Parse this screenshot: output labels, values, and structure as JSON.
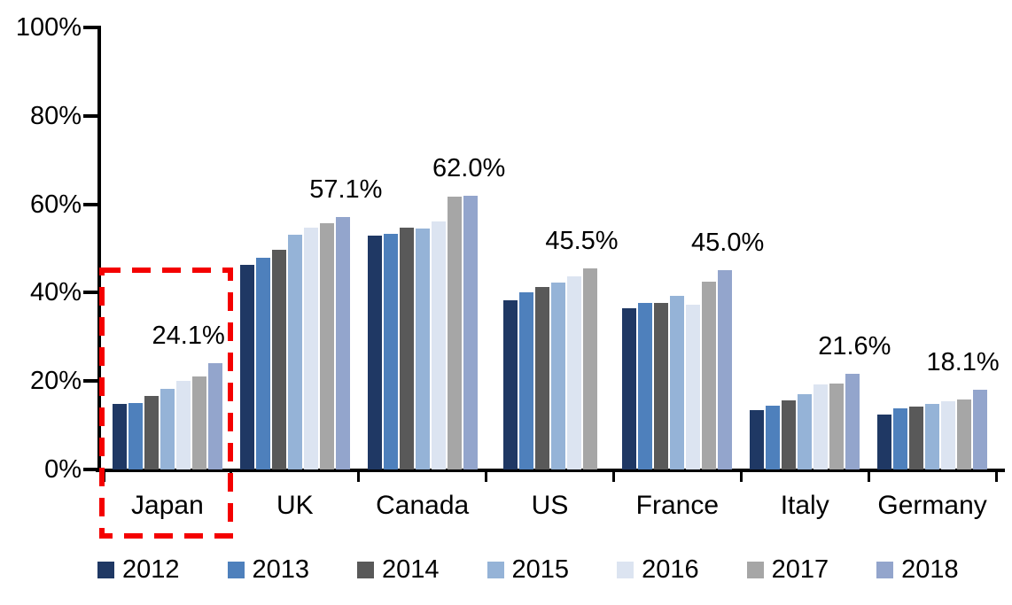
{
  "chart_data": {
    "type": "bar",
    "title": "",
    "xlabel": "",
    "ylabel": "",
    "categories": [
      "Japan",
      "UK",
      "Canada",
      "US",
      "France",
      "Italy",
      "Germany"
    ],
    "series": [
      {
        "name": "2012",
        "color": "#1F3864",
        "values": [
          14.8,
          46.3,
          53.0,
          38.2,
          36.4,
          13.5,
          12.5
        ]
      },
      {
        "name": "2013",
        "color": "#4E80BC",
        "values": [
          15.0,
          47.8,
          53.4,
          40.0,
          37.6,
          14.4,
          13.9
        ]
      },
      {
        "name": "2014",
        "color": "#595959",
        "values": [
          16.7,
          49.8,
          54.8,
          41.3,
          37.6,
          15.6,
          14.3
        ]
      },
      {
        "name": "2015",
        "color": "#95B3D7",
        "values": [
          18.2,
          53.1,
          54.6,
          42.2,
          39.3,
          17.0,
          14.8
        ]
      },
      {
        "name": "2016",
        "color": "#DCE4F1",
        "values": [
          20.1,
          54.8,
          56.1,
          43.6,
          37.3,
          19.2,
          15.4
        ]
      },
      {
        "name": "2017",
        "color": "#A6A6A6",
        "values": [
          21.1,
          55.8,
          61.7,
          45.5,
          42.4,
          19.4,
          15.9
        ]
      },
      {
        "name": "2018",
        "color": "#93A5CC",
        "values": [
          24.1,
          57.1,
          62.0,
          null,
          45.0,
          21.6,
          18.1
        ]
      }
    ],
    "annotations": [
      {
        "category": "Japan",
        "text": "24.1%"
      },
      {
        "category": "UK",
        "text": "57.1%"
      },
      {
        "category": "Canada",
        "text": "62.0%"
      },
      {
        "category": "US",
        "text": "45.5%"
      },
      {
        "category": "France",
        "text": "45.0%"
      },
      {
        "category": "Italy",
        "text": "21.6%"
      },
      {
        "category": "Germany",
        "text": "18.1%"
      }
    ],
    "y_axis": {
      "tick_labels": [
        "100%",
        "80%",
        "60%",
        "40%",
        "20%",
        "0%"
      ],
      "min": 0,
      "max": 100,
      "grid": false
    },
    "legend": {
      "position": "bottom",
      "entries": [
        "2012",
        "2013",
        "2014",
        "2015",
        "2016",
        "2017",
        "2018"
      ]
    },
    "highlight": {
      "category": "Japan",
      "shape": "dashed-rectangle",
      "color": "#F40000"
    }
  }
}
